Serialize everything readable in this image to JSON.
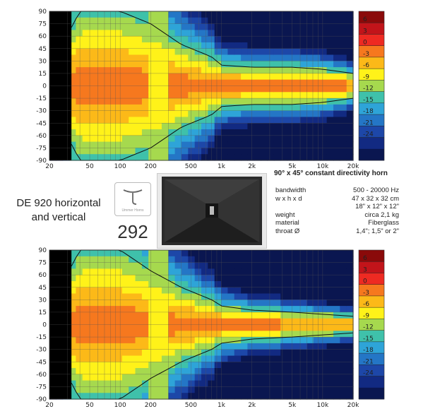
{
  "chart_data": [
    {
      "type": "heatmap",
      "name": "horizontal",
      "y_ticks": [
        "90",
        "75",
        "60",
        "45",
        "30",
        "15",
        "0",
        "-15",
        "-30",
        "-45",
        "-60",
        "-75",
        "-90"
      ],
      "x_ticks": [
        "20",
        "50",
        "100",
        "200",
        "500",
        "1k",
        "2k",
        "5k",
        "10k",
        "20k"
      ],
      "x_scale": "log",
      "xlim": [
        20,
        20000
      ],
      "ylim": [
        -90,
        90
      ],
      "legend_ticks": [
        "6",
        "3",
        "0",
        "-3",
        "-6",
        "-9",
        "-12",
        "-15",
        "-18",
        "-21",
        "-24"
      ],
      "palette": [
        "#8a0a0a",
        "#c2141a",
        "#ee2a22",
        "#f6781e",
        "#fcb918",
        "#fff219",
        "#a6d94e",
        "#3fc1aa",
        "#2ea4d8",
        "#2476c6",
        "#1d47a8",
        "#122a82",
        "#0a1650"
      ],
      "beamwidth_deg": [
        [
          20,
          40
        ],
        [
          40,
          180
        ],
        [
          100,
          180
        ],
        [
          200,
          150
        ],
        [
          400,
          100
        ],
        [
          800,
          70
        ],
        [
          1000,
          50
        ],
        [
          2000,
          45
        ],
        [
          5000,
          45
        ],
        [
          10000,
          40
        ],
        [
          20000,
          30
        ]
      ]
    },
    {
      "type": "heatmap",
      "name": "vertical",
      "y_ticks": [
        "90",
        "75",
        "60",
        "45",
        "30",
        "15",
        "0",
        "-15",
        "-30",
        "-45",
        "-60",
        "-75",
        "-90"
      ],
      "x_ticks": [
        "20",
        "50",
        "100",
        "200",
        "500",
        "1k",
        "2k",
        "5k",
        "10k",
        "20k"
      ],
      "x_scale": "log",
      "xlim": [
        20,
        20000
      ],
      "ylim": [
        -90,
        90
      ],
      "legend_ticks": [
        "6",
        "3",
        "0",
        "-3",
        "-6",
        "-9",
        "-12",
        "-15",
        "-18",
        "-21",
        "-24"
      ],
      "palette": [
        "#8a0a0a",
        "#c2141a",
        "#ee2a22",
        "#f6781e",
        "#fcb918",
        "#fff219",
        "#a6d94e",
        "#3fc1aa",
        "#2ea4d8",
        "#2476c6",
        "#1d47a8",
        "#122a82",
        "#0a1650"
      ],
      "beamwidth_deg": [
        [
          20,
          40
        ],
        [
          40,
          180
        ],
        [
          100,
          180
        ],
        [
          200,
          130
        ],
        [
          400,
          90
        ],
        [
          800,
          60
        ],
        [
          1000,
          45
        ],
        [
          2000,
          35
        ],
        [
          5000,
          30
        ],
        [
          10000,
          25
        ],
        [
          20000,
          20
        ]
      ]
    }
  ],
  "caption": {
    "line1": "DE 920 horizontal",
    "line2": "and vertical"
  },
  "badge_number": "292",
  "logo_text": "Ummer Horns",
  "spec_title": "90° x 45° constant directivity horn",
  "specs": [
    {
      "label": "bandwidth",
      "value": "500 - 20000 Hz"
    },
    {
      "label": "w x h x d",
      "value": "47 x 32 x 32 cm"
    },
    {
      "label": "",
      "value": "18\" x 12\" x 12\""
    },
    {
      "label": "weight",
      "value": "circa 2,1 kg"
    },
    {
      "label": "material",
      "value": "Fiberglass"
    },
    {
      "label": "throat Ø",
      "value": "1,4\"; 1,5\" or 2\""
    }
  ]
}
